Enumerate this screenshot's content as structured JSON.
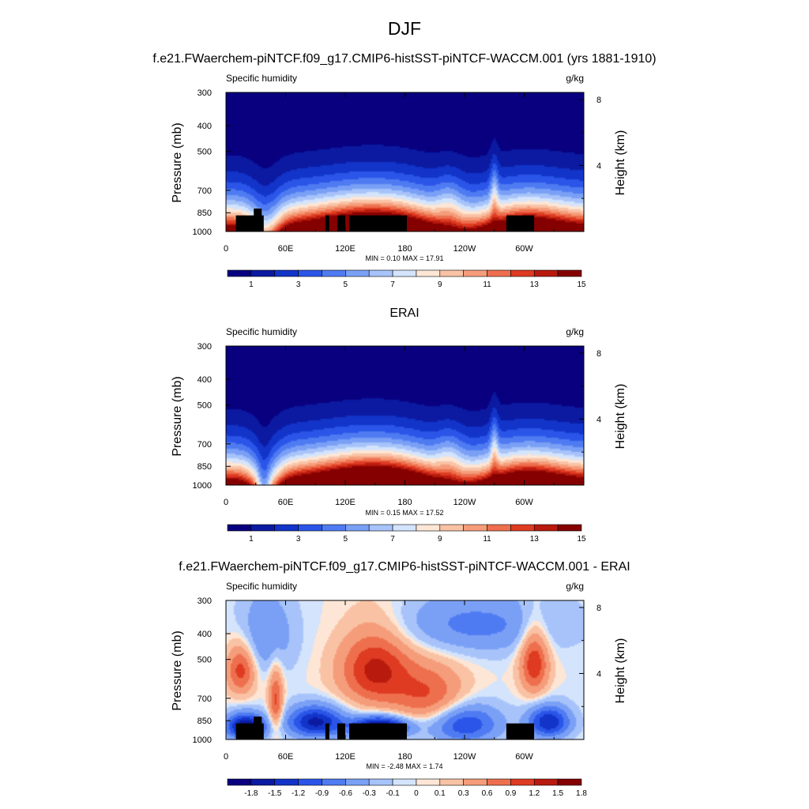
{
  "figure": {
    "title": "DJF"
  },
  "colorbars": {
    "absolute": {
      "colors": [
        "#08007f",
        "#0b1aa1",
        "#1234c8",
        "#2a55e8",
        "#4f7bf2",
        "#7aa0f6",
        "#a7c3fa",
        "#d3e4fc",
        "#fde6d6",
        "#f9c2a4",
        "#f59c7a",
        "#ee6f4d",
        "#de3b22",
        "#b81a0e",
        "#850000"
      ],
      "tick_labels": [
        "1",
        "3",
        "5",
        "7",
        "9",
        "11",
        "13",
        "15"
      ],
      "tick_after_boxes": [
        1,
        3,
        5,
        7,
        9,
        11,
        13,
        15
      ]
    },
    "difference": {
      "colors": [
        "#08007f",
        "#0b1aa1",
        "#1234c8",
        "#2a55e8",
        "#4f7bf2",
        "#7aa0f6",
        "#a7c3fa",
        "#d3e4fc",
        "#fde6d6",
        "#f9c2a4",
        "#f59c7a",
        "#ee6f4d",
        "#de3b22",
        "#b81a0e",
        "#850000"
      ],
      "tick_labels": [
        "-1.8",
        "-1.5",
        "-1.2",
        "-0.9",
        "-0.6",
        "-0.3",
        "-0.1",
        "0",
        "0.1",
        "0.3",
        "0.6",
        "0.9",
        "1.2",
        "1.5",
        "1.8"
      ],
      "tick_after_boxes": [
        1,
        2,
        3,
        4,
        5,
        6,
        7,
        8,
        9,
        10,
        11,
        12,
        13,
        14,
        15
      ]
    }
  },
  "chart_data": [
    {
      "type": "heatmap",
      "title": "f.e21.FWaerchem-piNTCF.f09_g17.CMIP6-histSST-piNTCF-WACCM.001 (yrs 1881-1910)",
      "left_label": "Specific humidity",
      "right_label": "g/kg",
      "xlabel": "",
      "ylabel": "Pressure (mb)",
      "y2label": "Height (km)",
      "x_ticks": [
        "0",
        "60E",
        "120E",
        "180",
        "120W",
        "60W"
      ],
      "x_tick_lon": [
        0,
        60,
        120,
        180,
        240,
        300
      ],
      "xlim": [
        0,
        360
      ],
      "y_ticks": [
        "300",
        "400",
        "500",
        "700",
        "850",
        "1000"
      ],
      "y_tick_p": [
        300,
        400,
        500,
        700,
        850,
        1000
      ],
      "ylim": [
        300,
        1000
      ],
      "y2_ticks": [
        "8",
        "4"
      ],
      "y2_tick_km": [
        8,
        4
      ],
      "stats": "MIN =   0.10  MAX =  17.91",
      "min": 0.1,
      "max": 17.91,
      "colorbar": "absolute",
      "field": "model",
      "topography": [
        [
          10,
          38,
          870
        ],
        [
          28,
          36,
          820
        ],
        [
          100,
          104,
          870
        ],
        [
          112,
          120,
          870
        ],
        [
          124,
          182,
          870
        ],
        [
          282,
          310,
          870
        ]
      ]
    },
    {
      "type": "heatmap",
      "title": "ERAI",
      "left_label": "Specific humidity",
      "right_label": "g/kg",
      "xlabel": "",
      "ylabel": "Pressure (mb)",
      "y2label": "Height (km)",
      "x_ticks": [
        "0",
        "60E",
        "120E",
        "180",
        "120W",
        "60W"
      ],
      "x_tick_lon": [
        0,
        60,
        120,
        180,
        240,
        300
      ],
      "xlim": [
        0,
        360
      ],
      "y_ticks": [
        "300",
        "400",
        "500",
        "700",
        "850",
        "1000"
      ],
      "y_tick_p": [
        300,
        400,
        500,
        700,
        850,
        1000
      ],
      "ylim": [
        300,
        1000
      ],
      "y2_ticks": [
        "8",
        "4"
      ],
      "y2_tick_km": [
        8,
        4
      ],
      "stats": "MIN =   0.15  MAX =  17.52",
      "min": 0.15,
      "max": 17.52,
      "colorbar": "absolute",
      "field": "obs",
      "topography": []
    },
    {
      "type": "heatmap",
      "title": "f.e21.FWaerchem-piNTCF.f09_g17.CMIP6-histSST-piNTCF-WACCM.001 - ERAI",
      "left_label": "Specific humidity",
      "right_label": "g/kg",
      "xlabel": "",
      "ylabel": "Pressure (mb)",
      "y2label": "Height (km)",
      "x_ticks": [
        "0",
        "60E",
        "120E",
        "180",
        "120W",
        "60W"
      ],
      "x_tick_lon": [
        0,
        60,
        120,
        180,
        240,
        300
      ],
      "xlim": [
        0,
        360
      ],
      "y_ticks": [
        "300",
        "400",
        "500",
        "700",
        "850",
        "1000"
      ],
      "y_tick_p": [
        300,
        400,
        500,
        700,
        850,
        1000
      ],
      "ylim": [
        300,
        1000
      ],
      "y2_ticks": [
        "8",
        "4"
      ],
      "y2_tick_km": [
        8,
        4
      ],
      "stats": "MIN =  -2.48  MAX =   1.74",
      "min": -2.48,
      "max": 1.74,
      "colorbar": "difference",
      "field": "diff",
      "topography": [
        [
          10,
          38,
          870
        ],
        [
          28,
          36,
          820
        ],
        [
          100,
          104,
          870
        ],
        [
          112,
          120,
          870
        ],
        [
          124,
          182,
          870
        ],
        [
          282,
          310,
          870
        ]
      ]
    }
  ]
}
